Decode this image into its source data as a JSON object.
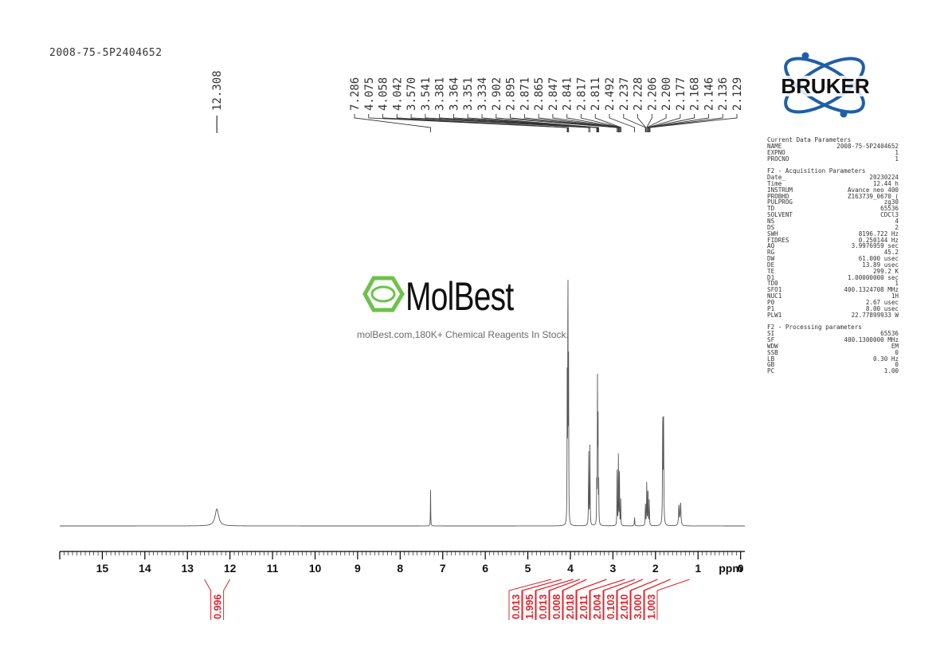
{
  "sample_id": "2008-75-5P2404652",
  "watermark": {
    "name": "MolBest",
    "tagline": "molBest.com,180K+ Chemical Reagents In Stock."
  },
  "logo": {
    "text": "BRUKER"
  },
  "parameters": {
    "current": {
      "title": "Current Data Parameters",
      "rows": [
        {
          "k": "NAME",
          "v": "2008-75-5P2404652",
          "u": ""
        },
        {
          "k": "EXPNO",
          "v": "1",
          "u": ""
        },
        {
          "k": "PROCNO",
          "v": "1",
          "u": ""
        }
      ]
    },
    "acquisition": {
      "title": "F2 - Acquisition Parameters",
      "rows": [
        {
          "k": "Date_",
          "v": "20230224",
          "u": ""
        },
        {
          "k": "Time",
          "v": "12.44",
          "u": "h"
        },
        {
          "k": "INSTRUM",
          "v": "Avance neo 400",
          "u": ""
        },
        {
          "k": "PROBHD",
          "v": "Z163739_0670 (",
          "u": ""
        },
        {
          "k": "PULPROG",
          "v": "zg30",
          "u": ""
        },
        {
          "k": "TD",
          "v": "65536",
          "u": ""
        },
        {
          "k": "SOLVENT",
          "v": "CDCl3",
          "u": ""
        },
        {
          "k": "NS",
          "v": "4",
          "u": ""
        },
        {
          "k": "DS",
          "v": "2",
          "u": ""
        },
        {
          "k": "SWH",
          "v": "8196.722",
          "u": "Hz"
        },
        {
          "k": "FIDRES",
          "v": "0.250144",
          "u": "Hz"
        },
        {
          "k": "AQ",
          "v": "3.9976959",
          "u": "sec"
        },
        {
          "k": "RG",
          "v": "45.2",
          "u": ""
        },
        {
          "k": "DW",
          "v": "61.000",
          "u": "usec"
        },
        {
          "k": "DE",
          "v": "13.89",
          "u": "usec"
        },
        {
          "k": "TE",
          "v": "299.2",
          "u": "K"
        },
        {
          "k": "D1",
          "v": "1.00000000",
          "u": "sec"
        },
        {
          "k": "TD0",
          "v": "1",
          "u": ""
        },
        {
          "k": "SFO1",
          "v": "400.1324708",
          "u": "MHz"
        },
        {
          "k": "NUC1",
          "v": "1H",
          "u": ""
        },
        {
          "k": "P0",
          "v": "2.67",
          "u": "usec"
        },
        {
          "k": "P1",
          "v": "8.00",
          "u": "usec"
        },
        {
          "k": "PLW1",
          "v": "22.77899933",
          "u": "W"
        }
      ]
    },
    "processing": {
      "title": "F2 - Processing parameters",
      "rows": [
        {
          "k": "SI",
          "v": "65536",
          "u": ""
        },
        {
          "k": "SF",
          "v": "400.1300000",
          "u": "MHz"
        },
        {
          "k": "WDW",
          "v": "EM",
          "u": ""
        },
        {
          "k": "SSB",
          "v": "0",
          "u": ""
        },
        {
          "k": "LB",
          "v": "0.30",
          "u": "Hz"
        },
        {
          "k": "GB",
          "v": "0",
          "u": ""
        },
        {
          "k": "PC",
          "v": "1.00",
          "u": ""
        }
      ]
    }
  },
  "chart_data": {
    "type": "line",
    "x_unit": "ppm",
    "xlim": [
      16,
      -0.1
    ],
    "x_ticks": [
      15,
      14,
      13,
      12,
      11,
      10,
      9,
      8,
      7,
      6,
      5,
      4,
      3,
      2,
      1,
      0
    ],
    "peak_labels_single": [
      "12.308"
    ],
    "peak_labels_group": [
      "7.286",
      "4.075",
      "4.058",
      "4.042",
      "3.570",
      "3.541",
      "3.381",
      "3.364",
      "3.351",
      "3.334",
      "2.902",
      "2.895",
      "2.871",
      "2.865",
      "2.847",
      "2.841",
      "2.817",
      "2.811",
      "2.492",
      "2.237",
      "2.228",
      "2.206",
      "2.200",
      "2.177",
      "2.168",
      "2.146",
      "2.136",
      "2.129"
    ],
    "peaks": [
      {
        "ppm": 12.308,
        "height": 0.06,
        "width": 0.05
      },
      {
        "ppm": 7.286,
        "height": 0.13,
        "width": 0.004
      },
      {
        "ppm": 4.075,
        "height": 0.5,
        "width": 0.004
      },
      {
        "ppm": 4.058,
        "height": 1.0,
        "width": 0.004
      },
      {
        "ppm": 4.042,
        "height": 0.55,
        "width": 0.004
      },
      {
        "ppm": 3.57,
        "height": 0.26,
        "width": 0.005
      },
      {
        "ppm": 3.541,
        "height": 0.28,
        "width": 0.005
      },
      {
        "ppm": 3.381,
        "height": 0.15,
        "width": 0.004
      },
      {
        "ppm": 3.364,
        "height": 0.5,
        "width": 0.004
      },
      {
        "ppm": 3.351,
        "height": 0.42,
        "width": 0.004
      },
      {
        "ppm": 3.334,
        "height": 0.15,
        "width": 0.004
      },
      {
        "ppm": 2.902,
        "height": 0.24,
        "width": 0.004
      },
      {
        "ppm": 2.871,
        "height": 0.26,
        "width": 0.004
      },
      {
        "ppm": 2.847,
        "height": 0.21,
        "width": 0.004
      },
      {
        "ppm": 2.817,
        "height": 0.1,
        "width": 0.004
      },
      {
        "ppm": 2.492,
        "height": 0.03,
        "width": 0.006
      },
      {
        "ppm": 2.237,
        "height": 0.08,
        "width": 0.005
      },
      {
        "ppm": 2.206,
        "height": 0.16,
        "width": 0.005
      },
      {
        "ppm": 2.177,
        "height": 0.14,
        "width": 0.005
      },
      {
        "ppm": 2.146,
        "height": 0.09,
        "width": 0.005
      },
      {
        "ppm": 1.83,
        "height": 0.38,
        "width": 0.006
      },
      {
        "ppm": 1.81,
        "height": 0.36,
        "width": 0.006
      },
      {
        "ppm": 1.45,
        "height": 0.07,
        "width": 0.01
      },
      {
        "ppm": 1.41,
        "height": 0.08,
        "width": 0.01
      }
    ],
    "integrals": [
      {
        "from": 12.6,
        "to": 12.0,
        "label": "0.996"
      },
      {
        "from": 4.45,
        "to": 4.2,
        "label": "0.013"
      },
      {
        "from": 4.2,
        "to": 3.93,
        "label": "1.995"
      },
      {
        "from": 3.93,
        "to": 3.78,
        "label": "0.013"
      },
      {
        "from": 3.78,
        "to": 3.62,
        "label": "0.008"
      },
      {
        "from": 3.62,
        "to": 3.15,
        "label": "2.018"
      },
      {
        "from": 3.15,
        "to": 2.72,
        "label": "2.011"
      },
      {
        "from": 2.72,
        "to": 2.48,
        "label": "2.004"
      },
      {
        "from": 2.48,
        "to": 2.3,
        "label": "0.103"
      },
      {
        "from": 2.3,
        "to": 1.95,
        "label": "2.010"
      },
      {
        "from": 1.95,
        "to": 1.65,
        "label": "3.000"
      },
      {
        "from": 1.65,
        "to": 1.2,
        "label": "1.003"
      }
    ],
    "colors": {
      "spectrum": "#555555",
      "axis": "#000000",
      "integral": "#e0242a",
      "molbest_green": "#6cc24a",
      "bruker_blue": "#1f5ea8"
    }
  }
}
